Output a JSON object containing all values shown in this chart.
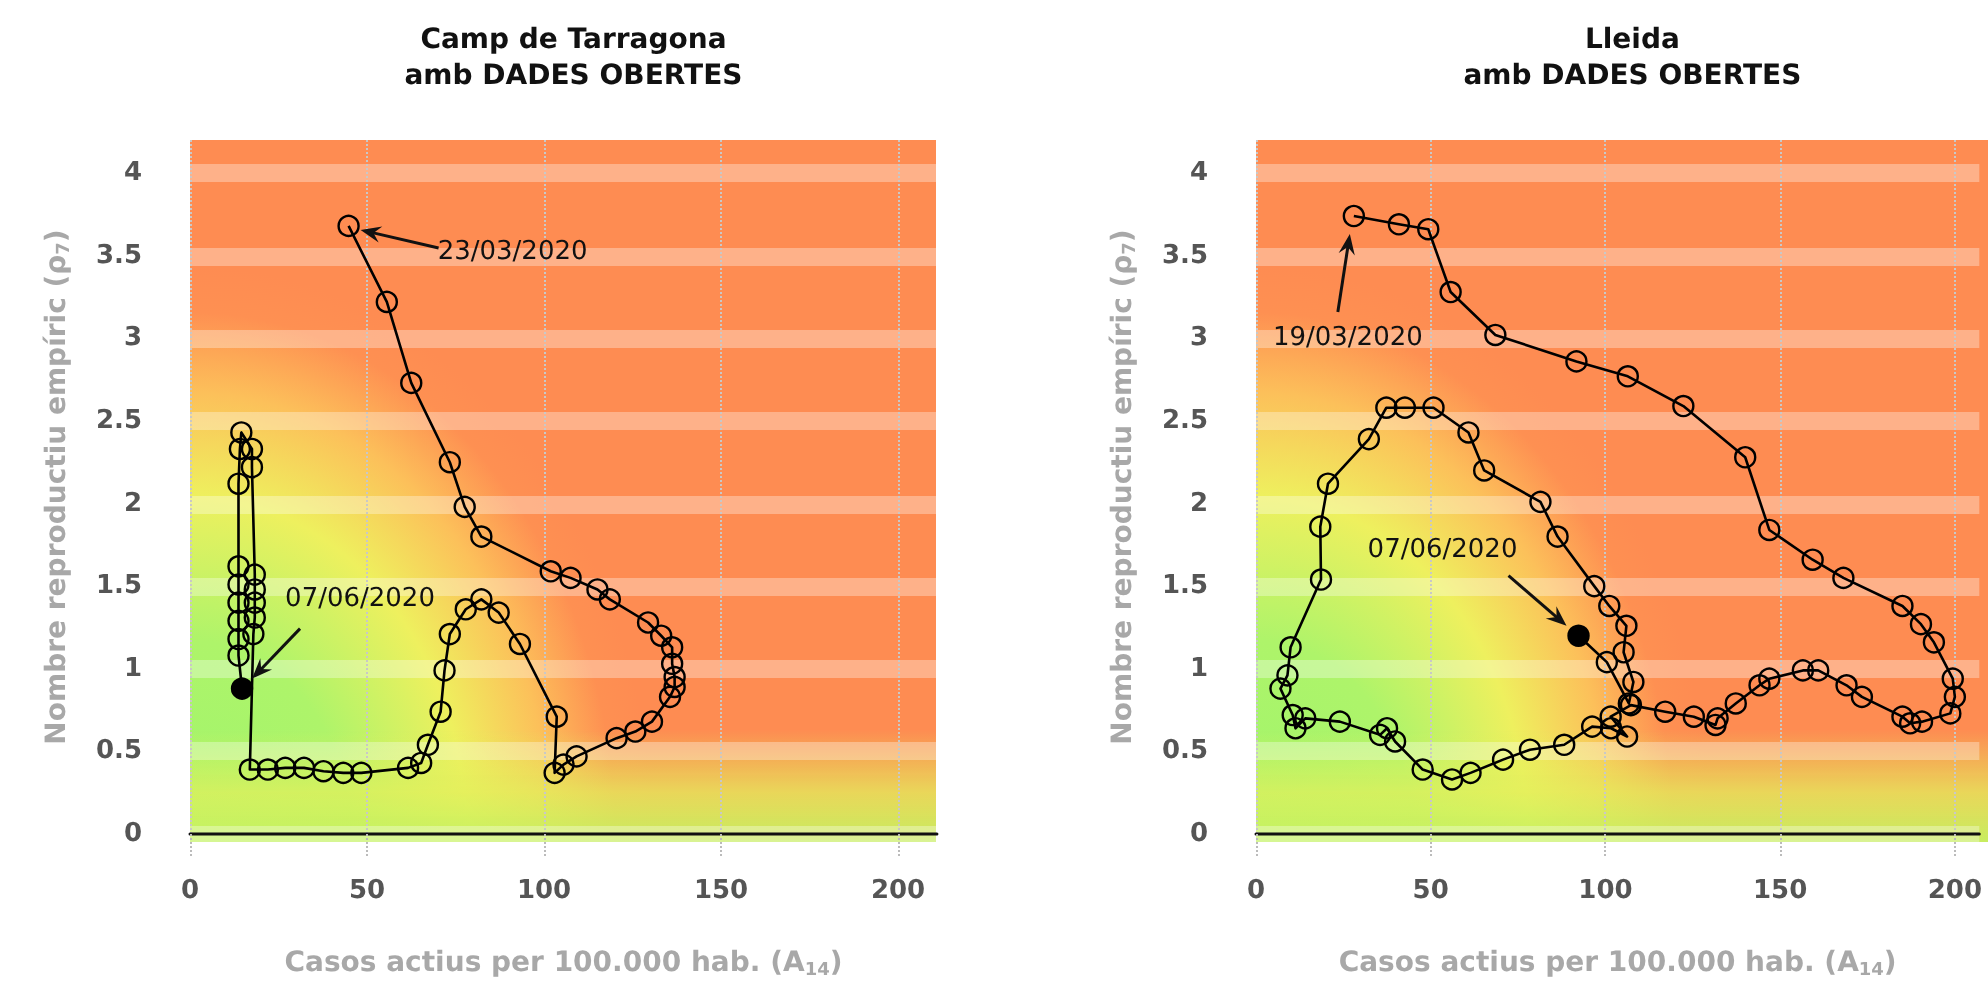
{
  "chart_data": [
    {
      "type": "line",
      "title": "Camp de Tarragona",
      "subtitle": "amb DADES OBERTES",
      "xlabel": "Casos actius per 100.000 hab. (A$_{14}$)",
      "ylabel": "Nombre reproductiu empíric (ρ$_{7}$)",
      "x": [
        44.8,
        55.6,
        62.5,
        73.4,
        77.6,
        82.3,
        101.9,
        107.5,
        115.1,
        118.6,
        129.4,
        133.1,
        136.2,
        136.2,
        136.9,
        136.9,
        135.6,
        130.5,
        125.8,
        120.5,
        109.2,
        105.5,
        103.0,
        103.6,
        93.2,
        87.2,
        82.3,
        77.9,
        73.4,
        71.9,
        70.8,
        67.2,
        65.3,
        61.6,
        48.4,
        43.3,
        37.7,
        32.2,
        26.9,
        22.0,
        16.9,
        17.9,
        18.3,
        18.3,
        18.3,
        18.3,
        17.5,
        17.5,
        14.5,
        14.1,
        13.7,
        13.7,
        13.7,
        13.7,
        13.7,
        13.7,
        13.7,
        14.7
      ],
      "series": [
        {
          "color": "#000000",
          "values": [
            3.68,
            3.22,
            2.73,
            2.25,
            1.98,
            1.8,
            1.59,
            1.55,
            1.48,
            1.42,
            1.28,
            1.2,
            1.13,
            1.03,
            0.95,
            0.89,
            0.83,
            0.68,
            0.62,
            0.58,
            0.47,
            0.42,
            0.37,
            0.71,
            1.15,
            1.34,
            1.42,
            1.36,
            1.21,
            0.99,
            0.74,
            0.54,
            0.43,
            0.4,
            0.37,
            0.37,
            0.38,
            0.4,
            0.4,
            0.39,
            0.39,
            1.21,
            1.31,
            1.4,
            1.48,
            1.57,
            2.22,
            2.33,
            2.43,
            2.33,
            2.12,
            1.62,
            1.51,
            1.4,
            1.29,
            1.18,
            1.08,
            0.88
          ]
        }
      ],
      "xlim": [
        0,
        211
      ],
      "xticks": [
        0,
        50,
        100,
        150,
        200
      ],
      "ylim": [
        0,
        4.2
      ],
      "yticks": [
        0,
        0.5,
        1,
        1.5,
        2,
        2.5,
        3,
        3.5,
        4
      ],
      "annotations": [
        "23/03/2020",
        "07/06/2020"
      ],
      "grid": true,
      "marker": "circle",
      "line_style": "solid"
    },
    {
      "type": "line",
      "title": "Lleida",
      "subtitle": "amb DADES OBERTES",
      "xlabel": "Casos actius per 100.000 hab. (A$_{14}$)",
      "ylabel": "Nombre reproductiu empíric (ρ$_{7}$)",
      "x": [
        28.0,
        40.9,
        49.3,
        55.7,
        68.5,
        91.7,
        106.4,
        122.3,
        140.0,
        146.9,
        159.3,
        168.1,
        185.0,
        190.3,
        194.0,
        199.4,
        200.0,
        198.7,
        190.6,
        187.2,
        185.0,
        173.4,
        169.0,
        160.9,
        156.5,
        146.9,
        144.1,
        137.3,
        132.1,
        131.5,
        125.3,
        117.1,
        107.3,
        101.5,
        106.2,
        101.6,
        96.2,
        88.2,
        78.4,
        70.7,
        61.4,
        56.1,
        47.7,
        39.8,
        37.5,
        35.5,
        24.0,
        14.1,
        11.3,
        10.5,
        7.0,
        9.0,
        9.9,
        18.6,
        18.4,
        20.6,
        32.3,
        37.3,
        42.6,
        50.8,
        60.8,
        65.3,
        81.4,
        86.3,
        96.8,
        101.1,
        106.0,
        105.2,
        108.0,
        106.7,
        100.4,
        92.3
      ],
      "series": [
        {
          "color": "#000000",
          "values": [
            3.74,
            3.69,
            3.66,
            3.28,
            3.02,
            2.86,
            2.77,
            2.59,
            2.28,
            1.84,
            1.66,
            1.55,
            1.38,
            1.27,
            1.16,
            0.94,
            0.83,
            0.73,
            0.68,
            0.67,
            0.71,
            0.83,
            0.9,
            0.99,
            0.99,
            0.94,
            0.9,
            0.79,
            0.7,
            0.66,
            0.71,
            0.74,
            0.78,
            0.71,
            0.59,
            0.64,
            0.65,
            0.54,
            0.51,
            0.45,
            0.37,
            0.33,
            0.39,
            0.56,
            0.64,
            0.6,
            0.68,
            0.7,
            0.64,
            0.72,
            0.88,
            0.96,
            1.13,
            1.54,
            1.86,
            2.12,
            2.39,
            2.58,
            2.58,
            2.58,
            2.43,
            2.2,
            2.01,
            1.8,
            1.5,
            1.38,
            1.26,
            1.1,
            0.92,
            0.79,
            1.04,
            1.2
          ]
        }
      ],
      "xlim": [
        0,
        207
      ],
      "xticks": [
        0,
        50,
        100,
        150,
        200
      ],
      "ylim": [
        0,
        4.2
      ],
      "yticks": [
        0,
        0.5,
        1,
        1.5,
        2,
        2.5,
        3,
        3.5,
        4
      ],
      "annotations": [
        "19/03/2020",
        "07/06/2020"
      ],
      "grid": true,
      "marker": "circle",
      "line_style": "solid"
    }
  ]
}
